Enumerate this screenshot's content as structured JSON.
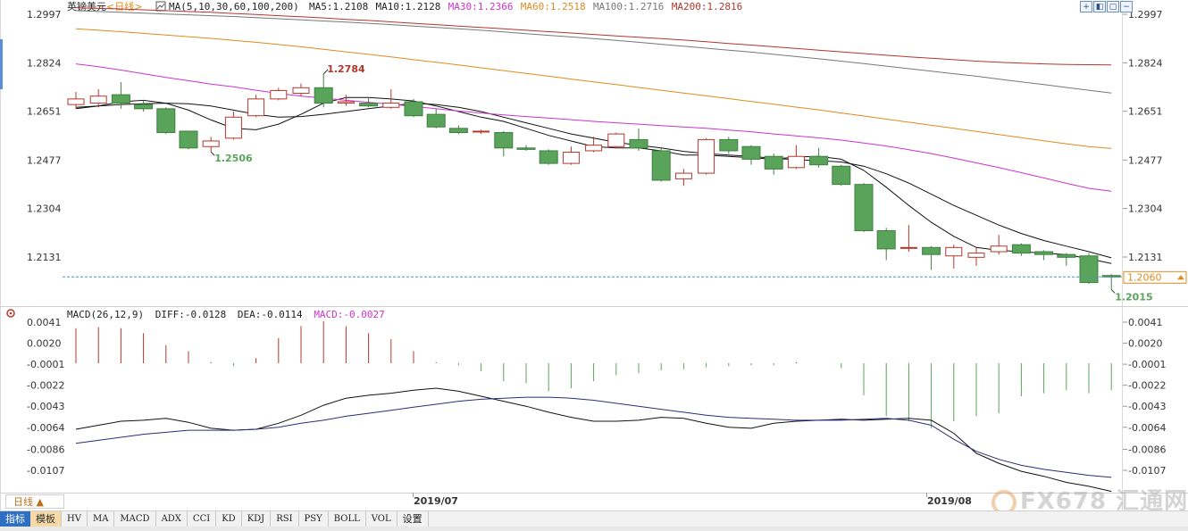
{
  "header": {
    "symbol": "英镑美元",
    "period": "<日线>",
    "ma_label": "MA(5,10,30,60,100,200)",
    "ma_values": [
      {
        "text": "MA5:1.2108",
        "color": "#222222"
      },
      {
        "text": "MA10:1.2128",
        "color": "#222222"
      },
      {
        "text": "MA30:1.2366",
        "color": "#cc33cc"
      },
      {
        "text": "MA60:1.2518",
        "color": "#e08a1e"
      },
      {
        "text": "MA100:1.2716",
        "color": "#777777"
      },
      {
        "text": "MA200:1.2816",
        "color": "#b5352b"
      }
    ]
  },
  "macd_header": {
    "label": "MACD(26,12,9)",
    "diff": "DIFF:-0.0128",
    "dea": "DEA:-0.0114",
    "macd": "MACD:-0.0027"
  },
  "price_axis": {
    "ticks": [
      "1.2997",
      "1.2824",
      "1.2651",
      "1.2477",
      "1.2304",
      "1.2131"
    ],
    "current_price": "1.2060"
  },
  "macd_axis": {
    "ticks": [
      "0.0041",
      "0.0020",
      "-0.0001",
      "-0.0022",
      "-0.0043",
      "-0.0064",
      "-0.0086",
      "-0.0107"
    ]
  },
  "annotations": {
    "high": "1.2784",
    "low_mid": "1.2506",
    "low_last": "1.2015"
  },
  "date_labels": [
    "2019/07",
    "2019/08"
  ],
  "period_selector": "日线 ▲",
  "toolbar": {
    "tabs": [
      "指标",
      "模板"
    ],
    "indicators": [
      "HV",
      "MA",
      "MACD",
      "ADX",
      "CCI",
      "KD",
      "KDJ",
      "RSI",
      "PSY",
      "BOLL",
      "VOL"
    ],
    "settings": "设置"
  },
  "watermark": "FX678 汇通网",
  "colors": {
    "up": "#b5352b",
    "down": "#5aa35a",
    "ma5": "#111111",
    "ma10": "#111111",
    "ma30": "#cc33cc",
    "ma60": "#e08a1e",
    "ma100": "#777777",
    "ma200": "#b5352b",
    "dea": "#2b2d7a",
    "current_line": "#4a90c8",
    "current_box": "#e08a1e"
  },
  "chart_data": [
    {
      "type": "candlestick",
      "title": "英镑美元<日线>",
      "ylim": [
        1.1985,
        1.301
      ],
      "y_ticks": [
        1.2997,
        1.2824,
        1.2651,
        1.2477,
        1.2304,
        1.2131
      ],
      "candles": [
        {
          "o": 1.2675,
          "c": 1.2695,
          "h": 1.272,
          "l": 1.266
        },
        {
          "o": 1.268,
          "c": 1.2705,
          "h": 1.273,
          "l": 1.2665
        },
        {
          "o": 1.271,
          "c": 1.268,
          "h": 1.2755,
          "l": 1.266
        },
        {
          "o": 1.2675,
          "c": 1.266,
          "h": 1.269,
          "l": 1.265
        },
        {
          "o": 1.266,
          "c": 1.2575,
          "h": 1.2665,
          "l": 1.257
        },
        {
          "o": 1.258,
          "c": 1.252,
          "h": 1.258,
          "l": 1.2515
        },
        {
          "o": 1.2525,
          "c": 1.2545,
          "h": 1.256,
          "l": 1.2506
        },
        {
          "o": 1.2555,
          "c": 1.263,
          "h": 1.265,
          "l": 1.255
        },
        {
          "o": 1.2635,
          "c": 1.2695,
          "h": 1.271,
          "l": 1.263
        },
        {
          "o": 1.2695,
          "c": 1.2725,
          "h": 1.2735,
          "l": 1.269
        },
        {
          "o": 1.2715,
          "c": 1.2735,
          "h": 1.275,
          "l": 1.2705
        },
        {
          "o": 1.2735,
          "c": 1.268,
          "h": 1.2784,
          "l": 1.2665
        },
        {
          "o": 1.268,
          "c": 1.2685,
          "h": 1.271,
          "l": 1.267
        },
        {
          "o": 1.268,
          "c": 1.267,
          "h": 1.27,
          "l": 1.2665
        },
        {
          "o": 1.2665,
          "c": 1.268,
          "h": 1.273,
          "l": 1.266
        },
        {
          "o": 1.2685,
          "c": 1.2635,
          "h": 1.2695,
          "l": 1.263
        },
        {
          "o": 1.264,
          "c": 1.2595,
          "h": 1.266,
          "l": 1.259
        },
        {
          "o": 1.259,
          "c": 1.2575,
          "h": 1.26,
          "l": 1.257
        },
        {
          "o": 1.258,
          "c": 1.258,
          "h": 1.2585,
          "l": 1.257
        },
        {
          "o": 1.2575,
          "c": 1.252,
          "h": 1.258,
          "l": 1.249
        },
        {
          "o": 1.252,
          "c": 1.2515,
          "h": 1.253,
          "l": 1.251
        },
        {
          "o": 1.251,
          "c": 1.2465,
          "h": 1.2515,
          "l": 1.246
        },
        {
          "o": 1.2465,
          "c": 1.2505,
          "h": 1.2525,
          "l": 1.246
        },
        {
          "o": 1.251,
          "c": 1.253,
          "h": 1.256,
          "l": 1.2505
        },
        {
          "o": 1.2525,
          "c": 1.257,
          "h": 1.2575,
          "l": 1.252
        },
        {
          "o": 1.255,
          "c": 1.252,
          "h": 1.259,
          "l": 1.251
        },
        {
          "o": 1.251,
          "c": 1.2405,
          "h": 1.252,
          "l": 1.24
        },
        {
          "o": 1.241,
          "c": 1.243,
          "h": 1.2445,
          "l": 1.2385
        },
        {
          "o": 1.243,
          "c": 1.255,
          "h": 1.2555,
          "l": 1.2425
        },
        {
          "o": 1.255,
          "c": 1.251,
          "h": 1.256,
          "l": 1.25
        },
        {
          "o": 1.2525,
          "c": 1.248,
          "h": 1.253,
          "l": 1.246
        },
        {
          "o": 1.249,
          "c": 1.2445,
          "h": 1.25,
          "l": 1.2425
        },
        {
          "o": 1.245,
          "c": 1.249,
          "h": 1.253,
          "l": 1.2445
        },
        {
          "o": 1.249,
          "c": 1.246,
          "h": 1.252,
          "l": 1.245
        },
        {
          "o": 1.2455,
          "c": 1.239,
          "h": 1.246,
          "l": 1.2385
        },
        {
          "o": 1.239,
          "c": 1.2225,
          "h": 1.2395,
          "l": 1.222
        },
        {
          "o": 1.2225,
          "c": 1.216,
          "h": 1.2235,
          "l": 1.212
        },
        {
          "o": 1.2165,
          "c": 1.2165,
          "h": 1.2245,
          "l": 1.215
        },
        {
          "o": 1.2165,
          "c": 1.214,
          "h": 1.217,
          "l": 1.2085
        },
        {
          "o": 1.2135,
          "c": 1.2165,
          "h": 1.2175,
          "l": 1.209
        },
        {
          "o": 1.213,
          "c": 1.2145,
          "h": 1.2165,
          "l": 1.21
        },
        {
          "o": 1.215,
          "c": 1.217,
          "h": 1.221,
          "l": 1.214
        },
        {
          "o": 1.2175,
          "c": 1.2145,
          "h": 1.218,
          "l": 1.2135
        },
        {
          "o": 1.215,
          "c": 1.214,
          "h": 1.2155,
          "l": 1.212
        },
        {
          "o": 1.214,
          "c": 1.213,
          "h": 1.2145,
          "l": 1.21
        },
        {
          "o": 1.2135,
          "c": 1.204,
          "h": 1.2145,
          "l": 1.2035
        },
        {
          "o": 1.2065,
          "c": 1.206,
          "h": 1.207,
          "l": 1.2015
        }
      ],
      "current_price": 1.206,
      "ma": [
        {
          "name": "MA5",
          "values": [
            1.266,
            1.267,
            1.2685,
            1.269,
            1.268,
            1.2655,
            1.262,
            1.259,
            1.2585,
            1.2605,
            1.264,
            1.268,
            1.27,
            1.27,
            1.2695,
            1.2688,
            1.267,
            1.265,
            1.263,
            1.2615,
            1.259,
            1.2565,
            1.2545,
            1.2525,
            1.252,
            1.252,
            1.251,
            1.2495,
            1.2495,
            1.249,
            1.2485,
            1.248,
            1.2488,
            1.249,
            1.248,
            1.244,
            1.238,
            1.2315,
            1.2255,
            1.2205,
            1.2165,
            1.2155,
            1.215,
            1.2145,
            1.214,
            1.2125,
            1.2108
          ]
        },
        {
          "name": "MA10",
          "values": [
            1.2665,
            1.267,
            1.2675,
            1.2678,
            1.268,
            1.2678,
            1.267,
            1.2655,
            1.264,
            1.263,
            1.2632,
            1.264,
            1.265,
            1.266,
            1.267,
            1.268,
            1.2675,
            1.2665,
            1.265,
            1.263,
            1.261,
            1.259,
            1.257,
            1.2555,
            1.254,
            1.253,
            1.252,
            1.2508,
            1.25,
            1.2495,
            1.249,
            1.2483,
            1.2478,
            1.2475,
            1.247,
            1.2455,
            1.2428,
            1.2395,
            1.2355,
            1.2315,
            1.228,
            1.2245,
            1.2215,
            1.219,
            1.217,
            1.215,
            1.2128
          ]
        },
        {
          "name": "MA30",
          "values": [
            1.282,
            1.281,
            1.2798,
            1.2785,
            1.2772,
            1.276,
            1.2748,
            1.2738,
            1.2726,
            1.2715,
            1.2705,
            1.2698,
            1.269,
            1.2683,
            1.2676,
            1.2668,
            1.266,
            1.2652,
            1.2645,
            1.2638,
            1.2632,
            1.2627,
            1.2621,
            1.2615,
            1.261,
            1.2605,
            1.26,
            1.2595,
            1.259,
            1.2584,
            1.2578,
            1.257,
            1.2563,
            1.2556,
            1.2548,
            1.2538,
            1.2527,
            1.2514,
            1.25,
            1.2484,
            1.2467,
            1.245,
            1.2432,
            1.2413,
            1.2394,
            1.2376,
            1.2366
          ]
        },
        {
          "name": "MA60",
          "values": [
            1.2945,
            1.294,
            1.2935,
            1.2929,
            1.2923,
            1.2917,
            1.2911,
            1.2904,
            1.2897,
            1.2889,
            1.2881,
            1.2872,
            1.2863,
            1.2854,
            1.2845,
            1.2835,
            1.2826,
            1.2816,
            1.2806,
            1.2796,
            1.2786,
            1.2776,
            1.2766,
            1.2756,
            1.2746,
            1.2736,
            1.2726,
            1.2716,
            1.2706,
            1.2696,
            1.2686,
            1.2676,
            1.2666,
            1.2656,
            1.2645,
            1.2634,
            1.2623,
            1.2612,
            1.2601,
            1.259,
            1.2579,
            1.2568,
            1.2557,
            1.2546,
            1.2535,
            1.2525,
            1.2518
          ]
        },
        {
          "name": "MA100",
          "values": [
            1.301,
            1.3007,
            1.3004,
            1.3001,
            1.2998,
            1.2995,
            1.2992,
            1.2989,
            1.2985,
            1.2981,
            1.2977,
            1.2973,
            1.2969,
            1.2965,
            1.296,
            1.2955,
            1.295,
            1.2945,
            1.294,
            1.2934,
            1.2928,
            1.2922,
            1.2916,
            1.291,
            1.2904,
            1.2897,
            1.289,
            1.2883,
            1.2876,
            1.2869,
            1.2862,
            1.2854,
            1.2846,
            1.2838,
            1.283,
            1.2821,
            1.2812,
            1.2803,
            1.2794,
            1.2785,
            1.2776,
            1.2766,
            1.2756,
            1.2746,
            1.2736,
            1.2726,
            1.2716
          ]
        },
        {
          "name": "MA200",
          "values": [
            1.302,
            1.3018,
            1.3016,
            1.3013,
            1.301,
            1.3007,
            1.3004,
            1.3,
            1.2996,
            1.2992,
            1.2988,
            1.2984,
            1.2979,
            1.2975,
            1.297,
            1.2965,
            1.296,
            1.2955,
            1.295,
            1.2945,
            1.294,
            1.2935,
            1.293,
            1.2925,
            1.292,
            1.2915,
            1.291,
            1.2905,
            1.2899,
            1.2893,
            1.2887,
            1.2881,
            1.2875,
            1.2869,
            1.2863,
            1.2857,
            1.2851,
            1.2845,
            1.284,
            1.2835,
            1.283,
            1.2826,
            1.2823,
            1.282,
            1.2818,
            1.2817,
            1.2816
          ]
        }
      ]
    },
    {
      "type": "bar",
      "title": "MACD(26,12,9)",
      "ylim": [
        -0.0125,
        0.005
      ],
      "y_ticks": [
        0.0041,
        0.002,
        -0.0001,
        -0.0022,
        -0.0043,
        -0.0064,
        -0.0086,
        -0.0107
      ],
      "macd": [
        0.0035,
        0.0036,
        0.0035,
        0.003,
        0.0018,
        0.0012,
        0.0001,
        -0.0003,
        0.0005,
        0.0025,
        0.0037,
        0.0042,
        0.0037,
        0.003,
        0.0024,
        0.0012,
        0.0001,
        -0.0002,
        -0.0008,
        -0.0018,
        -0.002,
        -0.0028,
        -0.0025,
        -0.0018,
        -0.0012,
        -0.001,
        -0.0007,
        -0.0006,
        -0.0004,
        -0.0003,
        -0.0002,
        -0.0002,
        0.0001,
        0.0,
        -0.0005,
        -0.0032,
        -0.0053,
        -0.0058,
        -0.0065,
        -0.0058,
        -0.0053,
        -0.005,
        -0.0033,
        -0.003,
        -0.0027,
        -0.003,
        -0.0027
      ],
      "series": [
        {
          "name": "DIFF",
          "values": [
            -0.0066,
            -0.0062,
            -0.0058,
            -0.0057,
            -0.0055,
            -0.0059,
            -0.0065,
            -0.0067,
            -0.0066,
            -0.006,
            -0.0052,
            -0.0042,
            -0.0035,
            -0.0032,
            -0.003,
            -0.0027,
            -0.0025,
            -0.0028,
            -0.0033,
            -0.0038,
            -0.0043,
            -0.0049,
            -0.0054,
            -0.0058,
            -0.0058,
            -0.0057,
            -0.0054,
            -0.0055,
            -0.006,
            -0.0064,
            -0.0065,
            -0.006,
            -0.0058,
            -0.0057,
            -0.0056,
            -0.0057,
            -0.0056,
            -0.0055,
            -0.0057,
            -0.007,
            -0.009,
            -0.01,
            -0.0108,
            -0.0113,
            -0.0119,
            -0.0123,
            -0.0128
          ]
        },
        {
          "name": "DEA",
          "values": [
            -0.008,
            -0.0077,
            -0.0074,
            -0.0071,
            -0.0069,
            -0.0067,
            -0.0067,
            -0.0067,
            -0.0066,
            -0.0064,
            -0.006,
            -0.0057,
            -0.0053,
            -0.005,
            -0.0047,
            -0.0044,
            -0.0041,
            -0.0038,
            -0.0036,
            -0.0035,
            -0.0034,
            -0.0034,
            -0.0035,
            -0.0037,
            -0.004,
            -0.0043,
            -0.0046,
            -0.0049,
            -0.0052,
            -0.0054,
            -0.0055,
            -0.0056,
            -0.0057,
            -0.0057,
            -0.0057,
            -0.0056,
            -0.0055,
            -0.0057,
            -0.0062,
            -0.0076,
            -0.0088,
            -0.0096,
            -0.0102,
            -0.0106,
            -0.0109,
            -0.0112,
            -0.0114
          ]
        }
      ]
    }
  ]
}
